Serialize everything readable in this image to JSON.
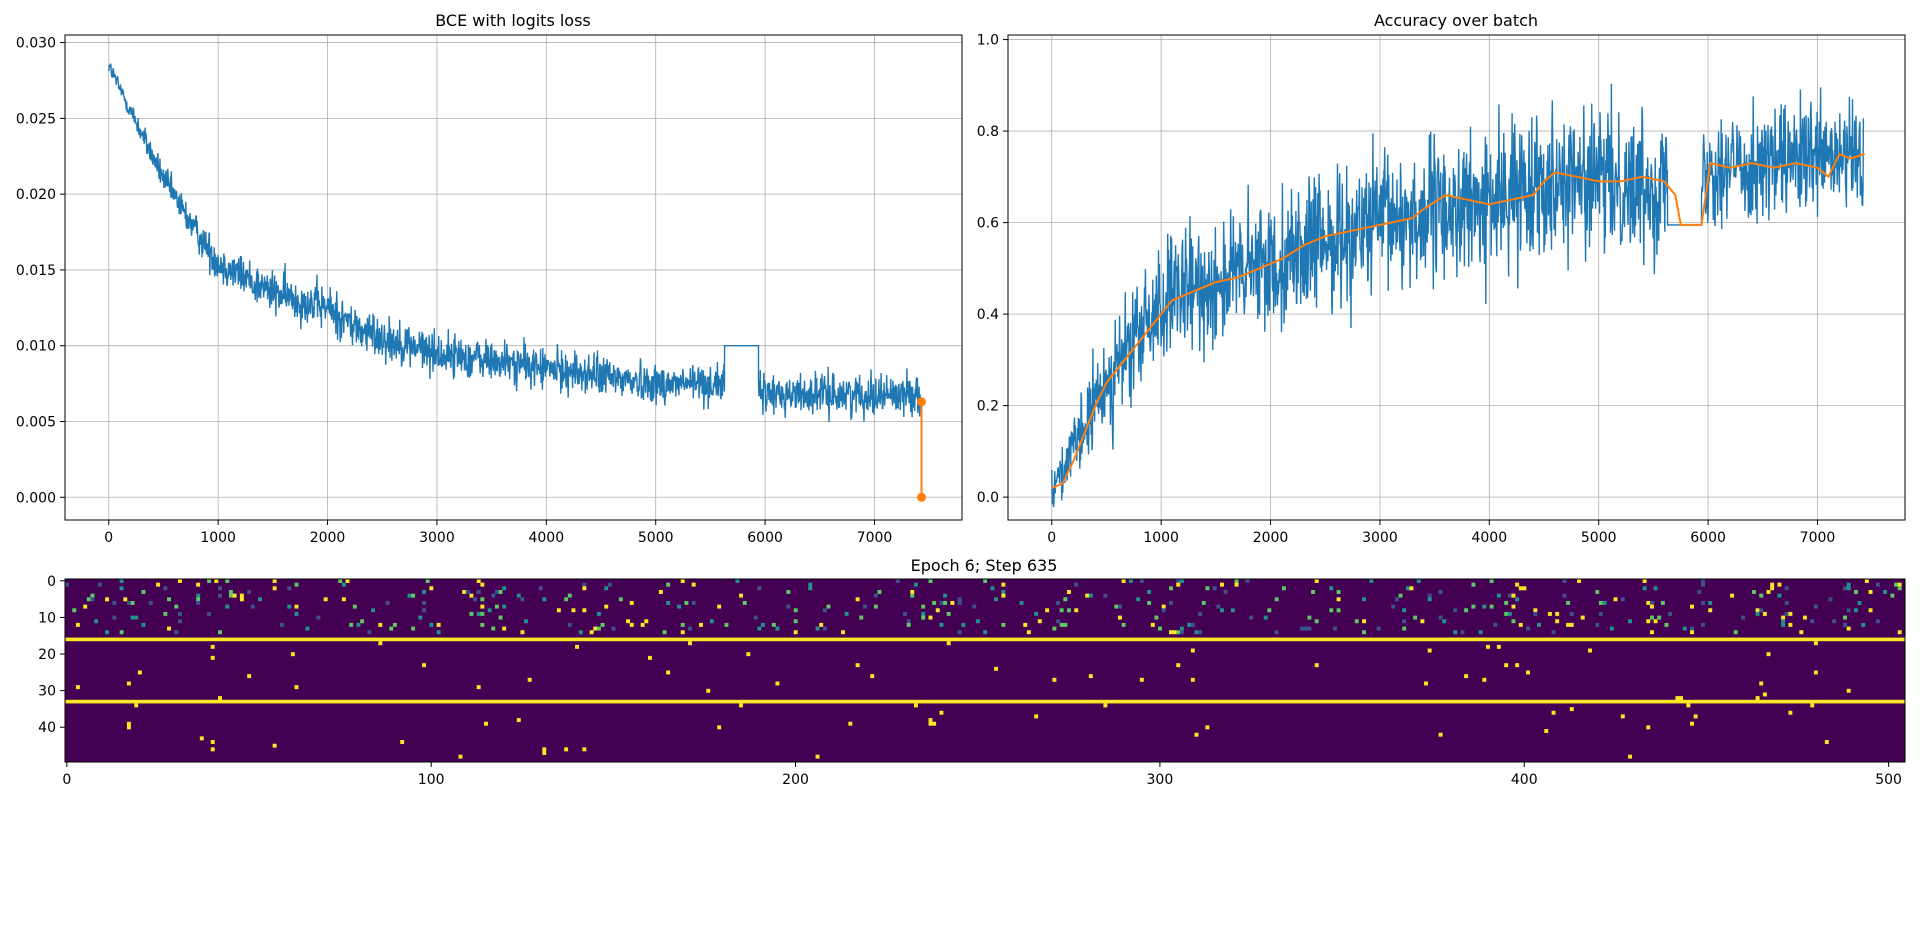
{
  "chart_data": [
    {
      "type": "line",
      "title": "BCE with logits loss",
      "xlim": [
        -400,
        7800
      ],
      "ylim": [
        -0.0015,
        0.0305
      ],
      "xticks": [
        0,
        1000,
        2000,
        3000,
        4000,
        5000,
        6000,
        7000
      ],
      "yticks": [
        0.0,
        0.005,
        0.01,
        0.015,
        0.02,
        0.025,
        0.03
      ],
      "ytick_labels": [
        "0.000",
        "0.005",
        "0.010",
        "0.015",
        "0.020",
        "0.025",
        "0.030"
      ],
      "grid": true,
      "series": [
        {
          "color": "#1f77b4",
          "style": "noisy",
          "trend": [
            [
              0,
              0.0285
            ],
            [
              200,
              0.0255
            ],
            [
              500,
              0.021
            ],
            [
              800,
              0.0175
            ],
            [
              1000,
              0.0155
            ],
            [
              1500,
              0.0135
            ],
            [
              2000,
              0.0125
            ],
            [
              2300,
              0.011
            ],
            [
              3000,
              0.0095
            ],
            [
              4000,
              0.0085
            ],
            [
              5000,
              0.0075
            ],
            [
              5630,
              0.0075
            ]
          ],
          "spread": [
            [
              0,
              0.0006
            ],
            [
              1000,
              0.0014
            ],
            [
              2000,
              0.0016
            ],
            [
              3000,
              0.0015
            ],
            [
              5630,
              0.0014
            ]
          ],
          "gap": [
            [
              5630,
              0.01
            ],
            [
              5940,
              0.01
            ]
          ],
          "trend2": [
            [
              5940,
              0.0068
            ],
            [
              7420,
              0.0068
            ]
          ],
          "spread2": 0.0014
        },
        {
          "color": "#ff7f0e",
          "style": "markers",
          "points": [
            [
              7430,
              0.0063
            ],
            [
              7430,
              0.0
            ]
          ]
        }
      ]
    },
    {
      "type": "line",
      "title": "Accuracy over batch",
      "xlim": [
        -400,
        7800
      ],
      "ylim": [
        -0.05,
        1.01
      ],
      "xticks": [
        0,
        1000,
        2000,
        3000,
        4000,
        5000,
        6000,
        7000
      ],
      "yticks": [
        0.0,
        0.2,
        0.4,
        0.6,
        0.8,
        1.0
      ],
      "ytick_labels": [
        "0.0",
        "0.2",
        "0.4",
        "0.6",
        "0.8",
        "1.0"
      ],
      "grid": true,
      "series": [
        {
          "color": "#1f77b4",
          "style": "noisy",
          "trend": [
            [
              0,
              0.02
            ],
            [
              200,
              0.1
            ],
            [
              500,
              0.25
            ],
            [
              1000,
              0.42
            ],
            [
              1500,
              0.47
            ],
            [
              2000,
              0.51
            ],
            [
              2500,
              0.56
            ],
            [
              3000,
              0.6
            ],
            [
              3400,
              0.62
            ],
            [
              4000,
              0.64
            ],
            [
              4500,
              0.7
            ],
            [
              5000,
              0.69
            ],
            [
              5630,
              0.68
            ]
          ],
          "spread": [
            [
              0,
              0.05
            ],
            [
              500,
              0.12
            ],
            [
              1000,
              0.14
            ],
            [
              2000,
              0.15
            ],
            [
              3000,
              0.16
            ],
            [
              5630,
              0.16
            ]
          ],
          "gap": [
            [
              5630,
              0.595
            ],
            [
              5940,
              0.595
            ]
          ],
          "trend2": [
            [
              5940,
              0.72
            ],
            [
              7420,
              0.74
            ]
          ],
          "spread2": 0.13
        },
        {
          "color": "#ff7f0e",
          "style": "line",
          "points": [
            [
              0,
              0.02
            ],
            [
              100,
              0.03
            ],
            [
              200,
              0.08
            ],
            [
              300,
              0.14
            ],
            [
              400,
              0.2
            ],
            [
              500,
              0.25
            ],
            [
              700,
              0.31
            ],
            [
              900,
              0.37
            ],
            [
              1100,
              0.43
            ],
            [
              1300,
              0.45
            ],
            [
              1500,
              0.47
            ],
            [
              1700,
              0.48
            ],
            [
              1900,
              0.5
            ],
            [
              2100,
              0.52
            ],
            [
              2300,
              0.55
            ],
            [
              2500,
              0.57
            ],
            [
              2700,
              0.58
            ],
            [
              2900,
              0.59
            ],
            [
              3100,
              0.6
            ],
            [
              3300,
              0.61
            ],
            [
              3400,
              0.63
            ],
            [
              3600,
              0.66
            ],
            [
              3800,
              0.65
            ],
            [
              4000,
              0.64
            ],
            [
              4200,
              0.65
            ],
            [
              4400,
              0.66
            ],
            [
              4500,
              0.69
            ],
            [
              4600,
              0.71
            ],
            [
              4800,
              0.7
            ],
            [
              5000,
              0.69
            ],
            [
              5200,
              0.69
            ],
            [
              5400,
              0.7
            ],
            [
              5600,
              0.69
            ],
            [
              5700,
              0.66
            ],
            [
              5750,
              0.595
            ],
            [
              5940,
              0.595
            ],
            [
              6020,
              0.73
            ],
            [
              6200,
              0.72
            ],
            [
              6400,
              0.73
            ],
            [
              6600,
              0.72
            ],
            [
              6800,
              0.73
            ],
            [
              7000,
              0.72
            ],
            [
              7100,
              0.7
            ],
            [
              7200,
              0.75
            ],
            [
              7300,
              0.74
            ],
            [
              7430,
              0.75
            ]
          ]
        }
      ]
    },
    {
      "type": "heatmap",
      "title": "Epoch 6; Step 635",
      "xlim": [
        0,
        505
      ],
      "ylim": [
        0,
        50
      ],
      "xticks": [
        0,
        100,
        200,
        300,
        400,
        500
      ],
      "yticks": [
        0,
        10,
        20,
        30,
        40
      ],
      "colormap": "viridis",
      "background_color": "#440154",
      "highlight_rows": [
        16,
        33
      ],
      "highlight_color": "#fde725",
      "dense_rows": [
        0,
        14
      ],
      "dense_colors": [
        "#21918c",
        "#3b528b",
        "#5ec962",
        "#fde725"
      ],
      "sparse_color": "#fde725"
    }
  ]
}
